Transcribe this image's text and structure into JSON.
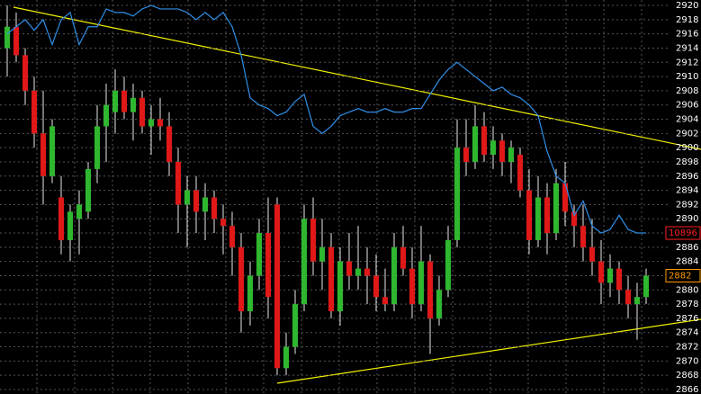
{
  "chart_data": {
    "type": "candlestick",
    "open": [
      2914,
      2917,
      2913,
      2908,
      2902,
      2896,
      2893,
      2887,
      2890,
      2891,
      2897,
      2903,
      2905,
      2908,
      2905,
      2907,
      2903,
      2904,
      2903,
      2898,
      2892,
      2894,
      2891,
      2893,
      2890,
      2889,
      2886,
      2877,
      2882,
      2888,
      2892,
      2869,
      2872,
      2878,
      2890,
      2884,
      2886,
      2877,
      2884,
      2882,
      2883,
      2882,
      2879,
      2878,
      2886,
      2883,
      2878,
      2884,
      2876,
      2880,
      2887,
      2900,
      2898,
      2903,
      2899,
      2901,
      2898,
      2899,
      2894,
      2887,
      2893,
      2888,
      2895,
      2891,
      2889,
      2886,
      2884,
      2881,
      2883,
      2880,
      2878,
      2879
    ],
    "high": [
      2920,
      2919,
      2914,
      2910,
      2908,
      2904,
      2896,
      2892,
      2894,
      2898,
      2906,
      2909,
      2911,
      2910,
      2909,
      2908,
      2906,
      2907,
      2905,
      2900,
      2896,
      2896,
      2895,
      2894,
      2892,
      2891,
      2888,
      2884,
      2890,
      2893,
      2893,
      2874,
      2880,
      2892,
      2893,
      2890,
      2888,
      2886,
      2888,
      2889,
      2886,
      2885,
      2883,
      2888,
      2889,
      2886,
      2889,
      2885,
      2882,
      2889,
      2904,
      2904,
      2906,
      2905,
      2903,
      2902,
      2901,
      2900,
      2897,
      2896,
      2895,
      2897,
      2898,
      2892,
      2892,
      2890,
      2887,
      2885,
      2884,
      2882,
      2881,
      2883
    ],
    "low": [
      2910,
      2912,
      2906,
      2900,
      2892,
      2895,
      2885,
      2884,
      2885,
      2890,
      2895,
      2898,
      2902,
      2904,
      2901,
      2902,
      2899,
      2901,
      2896,
      2888,
      2886,
      2888,
      2887,
      2888,
      2885,
      2882,
      2874,
      2875,
      2880,
      2876,
      2868,
      2868,
      2871,
      2877,
      2882,
      2880,
      2876,
      2875,
      2880,
      2880,
      2878,
      2877,
      2877,
      2877,
      2882,
      2876,
      2877,
      2871,
      2875,
      2879,
      2886,
      2896,
      2897,
      2898,
      2897,
      2896,
      2895,
      2893,
      2885,
      2886,
      2885,
      2887,
      2889,
      2886,
      2884,
      2882,
      2878,
      2879,
      2878,
      2876,
      2873,
      2878
    ],
    "close": [
      2917,
      2913,
      2908,
      2902,
      2896,
      2903,
      2887,
      2891,
      2892,
      2897,
      2903,
      2906,
      2908,
      2905,
      2907,
      2903,
      2904,
      2903,
      2898,
      2892,
      2894,
      2891,
      2893,
      2890,
      2889,
      2886,
      2877,
      2882,
      2888,
      2879,
      2869,
      2872,
      2878,
      2890,
      2884,
      2886,
      2877,
      2884,
      2882,
      2883,
      2882,
      2879,
      2878,
      2886,
      2883,
      2878,
      2884,
      2876,
      2880,
      2887,
      2900,
      2898,
      2903,
      2899,
      2901,
      2898,
      2900,
      2894,
      2887,
      2893,
      2888,
      2895,
      2891,
      2889,
      2886,
      2884,
      2881,
      2883,
      2880,
      2878,
      2879,
      2882
    ],
    "up_color": "#2fb82f",
    "down_color": "#e01818",
    "wick_color": "#e8e8e8",
    "overlay": {
      "color": "#2f8fe8",
      "axis": "y2",
      "values": [
        10952,
        10954,
        10956,
        10953,
        10956,
        10949,
        10956,
        10958,
        10949,
        10954,
        10954,
        10959,
        10958,
        10958,
        10957,
        10959,
        10960,
        10959,
        10959,
        10959,
        10958,
        10956,
        10958,
        10956,
        10958,
        10954,
        10946,
        10934,
        10932,
        10931,
        10929,
        10930,
        10933,
        10935,
        10926,
        10924,
        10926,
        10929,
        10930,
        10931,
        10930,
        10930,
        10931,
        10930,
        10930,
        10931,
        10931,
        10935,
        10939,
        10942,
        10944,
        10942,
        10940,
        10938,
        10936,
        10937,
        10935,
        10934,
        10932,
        10929,
        10919,
        10912,
        10910,
        10901,
        10905,
        10898,
        10896,
        10897,
        10901,
        10897,
        10896,
        10896
      ]
    },
    "ylim": [
      2866,
      2920
    ],
    "yticks": [
      2866,
      2868,
      2870,
      2872,
      2874,
      2876,
      2878,
      2880,
      2882,
      2884,
      2886,
      2888,
      2890,
      2892,
      2894,
      2896,
      2898,
      2900,
      2902,
      2904,
      2906,
      2908,
      2910,
      2912,
      2914,
      2916,
      2918,
      2920
    ],
    "y2lim": [
      10852,
      10960
    ],
    "last_price": 2882,
    "last_price_color": "#ff9a00",
    "overlay_last": 10896,
    "overlay_last_color": "#ff2020",
    "grid": true
  }
}
